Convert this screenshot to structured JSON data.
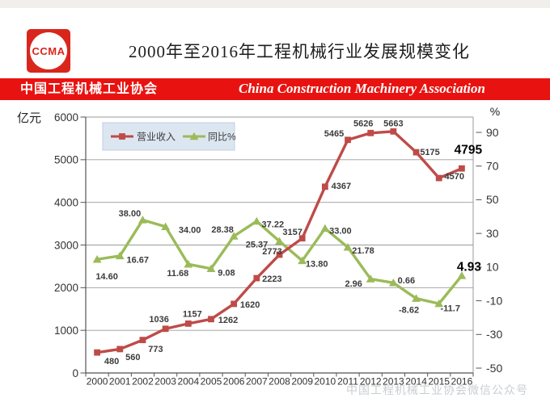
{
  "header": {
    "logo_text": "CCMA",
    "title": "2000年至2016年工程机械行业发展规模变化",
    "banner_left": "中国工程机械工业协会",
    "banner_right": "China Construction Machinery Association",
    "banner_color": "#e81310"
  },
  "watermark_text": "中国工程机械工业协会微信公众号",
  "chart_data": {
    "type": "line",
    "categories": [
      "2000",
      "2001",
      "2002",
      "2003",
      "2004",
      "2005",
      "2006",
      "2007",
      "2008",
      "2009",
      "2010",
      "2011",
      "2012",
      "2013",
      "2014",
      "2015",
      "2016"
    ],
    "left_axis": {
      "label": "亿元",
      "min": 0,
      "max": 6000,
      "step": 1000,
      "ticks": [
        "0",
        "1000",
        "2000",
        "3000",
        "4000",
        "5000",
        "6000"
      ]
    },
    "right_axis": {
      "label": "%",
      "ticks": [
        90,
        70,
        50,
        30,
        10,
        -10,
        -30,
        -50
      ],
      "min": -50,
      "max": 90
    },
    "grid": true,
    "legend": {
      "position": "top-left-inside",
      "bg": "#dce6f1"
    },
    "series": [
      {
        "name": "营业收入",
        "axis": "left",
        "color": "#be4b48",
        "marker": "square",
        "values": [
          480,
          560,
          773,
          1036,
          1157,
          1262,
          1620,
          2223,
          2773,
          3157,
          4367,
          5465,
          5626,
          5663,
          5175,
          4570,
          4795
        ],
        "labels": [
          "480",
          "560",
          "773",
          "1036",
          "1157",
          "1262",
          "1620",
          "2223",
          "2773",
          "3157",
          "4367",
          "5465",
          "5626",
          "5663",
          "5175",
          "4570",
          "4795"
        ]
      },
      {
        "name": "同比%",
        "axis": "right",
        "color": "#9bbb59",
        "marker": "triangle",
        "values": [
          14.6,
          16.67,
          38.0,
          34.0,
          11.68,
          9.08,
          28.38,
          37.22,
          25.37,
          13.8,
          33.0,
          21.78,
          2.96,
          0.66,
          -8.62,
          -11.7,
          4.93
        ],
        "labels": [
          "14.60",
          "16.67",
          "38.00",
          "34.00",
          "11.68",
          "9.08",
          "28.38",
          "37.22",
          "25.37",
          "13.80",
          "33.00",
          "21.78",
          "2.96",
          "0.66",
          "-8.62",
          "-11.7",
          "4.93"
        ]
      }
    ],
    "emphasized_last_point": true
  }
}
